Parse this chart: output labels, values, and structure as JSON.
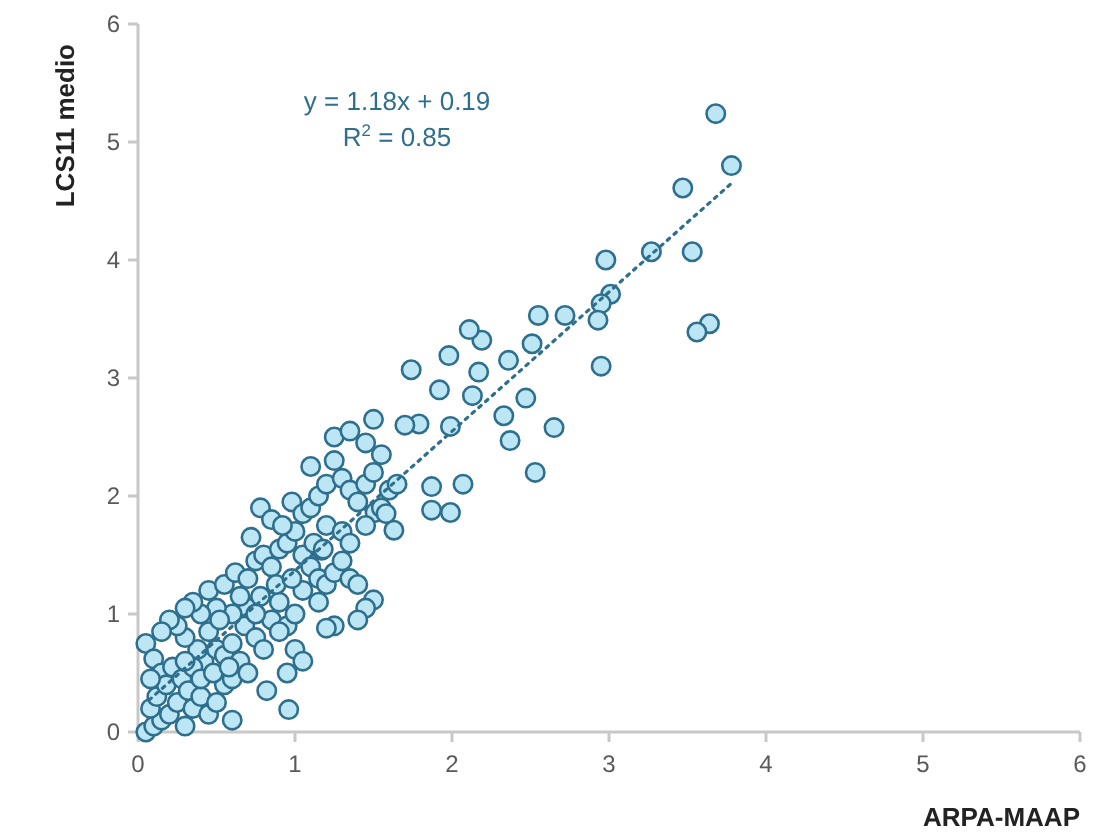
{
  "chart_data": {
    "type": "scatter",
    "xlabel": "ARPA-MAAP",
    "ylabel": "LCS11 medio",
    "xlim": [
      0,
      6
    ],
    "ylim": [
      0,
      6
    ],
    "xticks": [
      0,
      1,
      2,
      3,
      4,
      5,
      6
    ],
    "yticks": [
      0,
      1,
      2,
      3,
      4,
      5,
      6
    ],
    "marker": "circle",
    "annotations": [
      "y = 1.18x + 0.19",
      "R$^{2}$ = 0.85"
    ],
    "series": [
      {
        "color": "#bde6f4",
        "x": [
          3.68,
          3.78,
          3.47,
          3.27,
          3.53,
          2.98,
          3.01,
          2.95,
          2.93,
          3.64,
          3.56,
          2.72,
          2.55,
          2.95,
          2.51,
          2.36,
          2.17,
          2.33,
          2.53,
          2.65,
          2.19,
          2.11,
          1.98,
          1.92,
          1.79,
          1.74,
          1.87,
          2.07,
          1.87,
          1.99,
          1.51,
          1.63,
          1.5,
          1.17,
          0.96,
          2.37,
          2.47,
          1.99,
          2.13,
          0.05,
          0.1,
          0.15,
          0.08,
          0.12,
          0.2,
          0.25,
          0.3,
          0.05,
          0.1,
          0.15,
          0.18,
          0.22,
          0.28,
          0.32,
          0.35,
          0.4,
          0.45,
          0.5,
          0.55,
          0.6,
          0.42,
          0.38,
          0.3,
          0.25,
          0.2,
          0.45,
          0.5,
          0.55,
          0.6,
          0.65,
          0.7,
          0.68,
          0.75,
          0.8,
          0.85,
          0.9,
          0.95,
          1.0,
          1.05,
          0.7,
          0.6,
          0.5,
          0.45,
          0.55,
          0.62,
          0.7,
          0.75,
          0.8,
          0.85,
          0.9,
          0.95,
          1.0,
          1.05,
          1.1,
          1.15,
          1.2,
          1.25,
          1.3,
          1.35,
          1.4,
          1.45,
          1.4,
          1.25,
          1.2,
          1.0,
          0.95,
          0.72,
          0.78,
          0.85,
          0.92,
          0.98,
          1.05,
          1.1,
          1.15,
          1.2,
          1.25,
          1.3,
          1.35,
          1.4,
          1.45,
          1.5,
          1.55,
          1.5,
          1.45,
          1.25,
          1.1,
          1.2,
          1.3,
          1.35,
          1.45,
          1.55,
          1.6,
          1.65,
          1.7,
          1.58,
          1.35,
          0.4,
          0.35,
          0.3,
          0.15,
          0.08,
          0.35,
          0.6,
          0.82,
          1.05,
          0.88,
          0.98,
          0.78,
          0.65,
          0.52,
          0.4,
          1.12,
          1.18,
          0.3,
          0.48,
          0.58,
          0.75,
          0.9,
          1.15
        ],
        "values": [
          5.24,
          4.8,
          4.61,
          4.07,
          4.07,
          4.0,
          3.71,
          3.63,
          3.49,
          3.46,
          3.39,
          3.53,
          3.53,
          3.1,
          3.29,
          3.15,
          3.05,
          2.68,
          2.2,
          2.58,
          3.32,
          3.41,
          3.19,
          2.9,
          2.61,
          3.07,
          2.08,
          2.1,
          1.88,
          1.86,
          1.86,
          1.71,
          1.12,
          1.54,
          0.19,
          2.47,
          2.83,
          2.59,
          2.85,
          0.0,
          0.05,
          0.1,
          0.2,
          0.3,
          0.15,
          0.25,
          0.05,
          0.75,
          0.62,
          0.5,
          0.4,
          0.55,
          0.45,
          0.35,
          0.2,
          0.3,
          0.15,
          0.25,
          0.4,
          0.45,
          0.6,
          0.7,
          0.8,
          0.9,
          0.95,
          0.85,
          0.7,
          0.65,
          0.75,
          0.6,
          0.5,
          0.9,
          0.8,
          0.7,
          0.95,
          1.1,
          0.9,
          1.0,
          1.2,
          1.05,
          1.0,
          1.05,
          1.2,
          1.25,
          1.35,
          1.3,
          1.45,
          1.5,
          1.4,
          1.55,
          1.6,
          1.7,
          1.5,
          1.4,
          1.3,
          1.25,
          1.35,
          1.45,
          1.3,
          1.25,
          1.05,
          0.95,
          0.9,
          0.88,
          0.7,
          0.5,
          1.65,
          1.9,
          1.8,
          1.75,
          1.95,
          1.85,
          1.9,
          2.0,
          2.1,
          2.3,
          2.15,
          2.05,
          1.95,
          2.1,
          2.2,
          2.35,
          2.65,
          2.45,
          2.5,
          2.25,
          1.75,
          1.7,
          1.6,
          1.75,
          1.9,
          2.05,
          2.1,
          2.6,
          1.85,
          2.55,
          1.0,
          1.1,
          1.05,
          0.85,
          0.45,
          0.55,
          0.1,
          0.35,
          0.6,
          1.25,
          1.3,
          1.15,
          1.15,
          0.95,
          0.45,
          1.6,
          1.55,
          0.6,
          0.5,
          0.55,
          1.0,
          0.85,
          1.1
        ]
      },
      {
        "type": "line",
        "color": "#2e6f8e",
        "line_style": "dotted",
        "marker": "none",
        "x": [
          0.07,
          3.78
        ],
        "values": [
          0.27,
          4.65
        ]
      }
    ]
  }
}
